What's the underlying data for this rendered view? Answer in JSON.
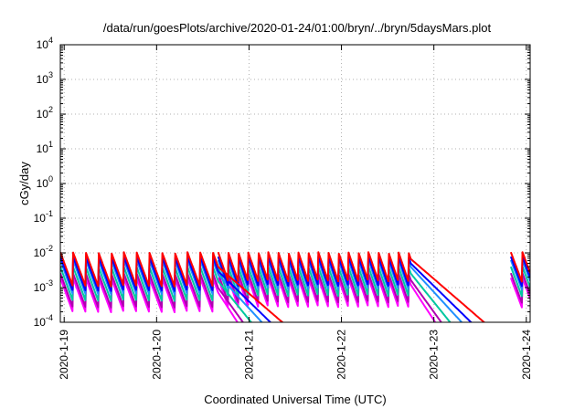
{
  "chart_data": {
    "type": "line",
    "title": "/data/run/goesPlots/archive/2020-01-24/01:00/bryn/../bryn/5daysMars.plot",
    "xlabel": "Coordinated Universal Time (UTC)",
    "ylabel": "cGy/day",
    "y_scale": "log",
    "ylim": [
      0.0001,
      10000
    ],
    "y_ticks": [
      {
        "value": 0.0001,
        "base": "10",
        "exp": "-4"
      },
      {
        "value": 0.001,
        "base": "10",
        "exp": "-3"
      },
      {
        "value": 0.01,
        "base": "10",
        "exp": "-2"
      },
      {
        "value": 0.1,
        "base": "10",
        "exp": "-1"
      },
      {
        "value": 1,
        "base": "10",
        "exp": "0"
      },
      {
        "value": 10,
        "base": "10",
        "exp": "1"
      },
      {
        "value": 100,
        "base": "10",
        "exp": "2"
      },
      {
        "value": 1000,
        "base": "10",
        "exp": "3"
      },
      {
        "value": 10000,
        "base": "10",
        "exp": "4"
      }
    ],
    "xlim": [
      "2020-01-18 23:00",
      "2020-01-24 01:00"
    ],
    "x_ticks": [
      "2020-1-19",
      "2020-1-20",
      "2020-1-21",
      "2020-1-22",
      "2020-1-23",
      "2020-1-24"
    ],
    "grid": true,
    "series": [
      {
        "color": "#ff0000",
        "peak": 0.0105,
        "decay_per_day": 2.3
      },
      {
        "color": "#0000ff",
        "peak": 0.0078,
        "decay_per_day": 2.6
      },
      {
        "color": "#1e90ff",
        "peak": 0.0062,
        "decay_per_day": 2.9
      },
      {
        "color": "#00c8a0",
        "peak": 0.004,
        "decay_per_day": 3.3
      },
      {
        "color": "#b000b0",
        "peak": 0.0026,
        "decay_per_day": 3.7
      },
      {
        "color": "#ff00ff",
        "peak": 0.0019,
        "decay_per_day": 4.1
      }
    ],
    "events": [
      {
        "start": "2020-01-18 23:00",
        "end": "2020-01-20 16:00",
        "period_hours": 3.3,
        "amplitude_decades": 1.0
      },
      {
        "start": "2020-01-20 16:00",
        "end": "2020-01-22 18:00",
        "period_hours": 2.6,
        "amplitude_decades": 0.85
      },
      {
        "start": "2020-01-23 20:00",
        "end": "2020-01-24 01:00",
        "period_hours": 3.0,
        "amplitude_decades": 0.9
      }
    ]
  }
}
